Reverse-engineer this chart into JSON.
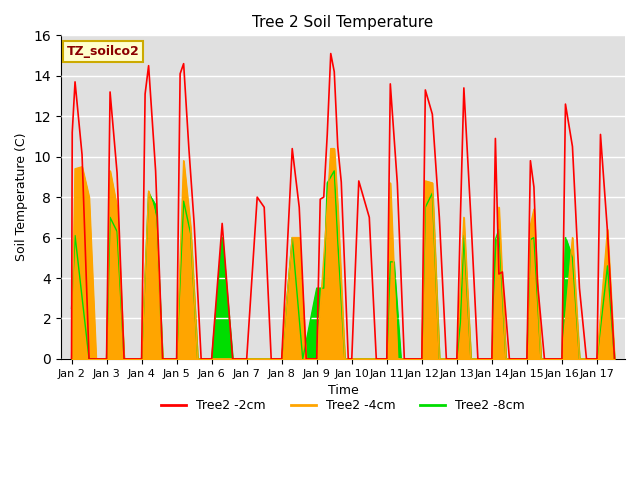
{
  "title": "Tree 2 Soil Temperature",
  "xlabel": "Time",
  "ylabel": "Soil Temperature (C)",
  "ylim": [
    0,
    16
  ],
  "yticks": [
    0,
    2,
    4,
    6,
    8,
    10,
    12,
    14,
    16
  ],
  "annotation_text": "TZ_soilco2",
  "bg_color": "#e0e0e0",
  "legend_entries": [
    "Tree2 -2cm",
    "Tree2 -4cm",
    "Tree2 -8cm"
  ],
  "line_colors": [
    "#ff0000",
    "#ffa500",
    "#00dd00"
  ],
  "x_labels": [
    "Jan 2",
    "Jan 3",
    "Jan 4",
    "Jan 5",
    "Jan 6",
    "Jan 7",
    "Jan 8",
    "Jan 9",
    "Jan 10",
    "Jan 11",
    "Jan 12",
    "Jan 13",
    "Jan 14",
    "Jan 15",
    "Jan 16",
    "Jan 17"
  ],
  "x_positions": [
    0,
    1,
    2,
    3,
    4,
    5,
    6,
    7,
    8,
    9,
    10,
    11,
    12,
    13,
    14,
    15
  ],
  "series_2cm": [
    0,
    11.2,
    13.7,
    10.1,
    0,
    0,
    13.2,
    9.2,
    0,
    0,
    13.1,
    14.5,
    9.3,
    0,
    0,
    14.1,
    14.6,
    10.4,
    6.7,
    0,
    0,
    6.7,
    0,
    0,
    8.0,
    7.5,
    0,
    0,
    10.4,
    7.5,
    0,
    0,
    7.9,
    8.0,
    11.1,
    15.1,
    14.2,
    10.5,
    8.75,
    0,
    0,
    8.8,
    7.0,
    0,
    0,
    13.6,
    8.7,
    0,
    0,
    13.3,
    12.1,
    7.0,
    0,
    0,
    6.9,
    13.4,
    7.0,
    0,
    0,
    10.9,
    4.2,
    4.3,
    0,
    0,
    9.8,
    8.5,
    3.8,
    0,
    0,
    12.6,
    10.5,
    3.5,
    0,
    0,
    11.1,
    6.3,
    0
  ],
  "series_2cm_x": [
    0.0,
    0.02,
    0.1,
    0.3,
    0.5,
    1.0,
    1.1,
    1.3,
    1.5,
    2.0,
    2.1,
    2.2,
    2.4,
    2.6,
    3.0,
    3.1,
    3.2,
    3.35,
    3.5,
    3.7,
    4.0,
    4.3,
    4.6,
    5.0,
    5.3,
    5.5,
    5.7,
    6.0,
    6.3,
    6.5,
    6.7,
    7.0,
    7.1,
    7.2,
    7.3,
    7.4,
    7.5,
    7.6,
    7.7,
    7.9,
    8.0,
    8.2,
    8.5,
    8.7,
    9.0,
    9.1,
    9.3,
    9.5,
    10.0,
    10.1,
    10.3,
    10.5,
    10.7,
    11.0,
    11.1,
    11.2,
    11.4,
    11.6,
    12.0,
    12.1,
    12.2,
    12.3,
    12.5,
    13.0,
    13.1,
    13.2,
    13.3,
    13.5,
    14.0,
    14.1,
    14.3,
    14.5,
    14.7,
    15.0,
    15.1,
    15.3,
    15.5
  ],
  "series_4cm": [
    0,
    9.4,
    9.5,
    8.0,
    0,
    0,
    9.3,
    7.5,
    0,
    0,
    8.3,
    7.0,
    0,
    0,
    9.8,
    6.5,
    0,
    0,
    0,
    0,
    6.0,
    6.0,
    0,
    0,
    7.5,
    10.4,
    10.4,
    7.5,
    0,
    0,
    0,
    8.7,
    0,
    0,
    8.8,
    8.7,
    0,
    0,
    7.0,
    0,
    0,
    7.5,
    0,
    0,
    6.6,
    7.4,
    0,
    0,
    6.0,
    0,
    0,
    6.4,
    0
  ],
  "series_4cm_x": [
    0.0,
    0.1,
    0.3,
    0.5,
    0.7,
    1.0,
    1.1,
    1.3,
    1.5,
    2.0,
    2.2,
    2.4,
    2.6,
    3.0,
    3.2,
    3.4,
    3.6,
    4.0,
    5.0,
    6.0,
    6.3,
    6.5,
    6.7,
    7.0,
    7.3,
    7.4,
    7.5,
    7.6,
    7.8,
    8.0,
    9.0,
    9.1,
    9.3,
    10.0,
    10.1,
    10.3,
    10.5,
    11.0,
    11.2,
    11.4,
    12.0,
    12.2,
    12.4,
    13.0,
    13.1,
    13.2,
    13.4,
    14.0,
    14.3,
    14.5,
    15.0,
    15.3,
    15.5
  ],
  "series_8cm": [
    2.5,
    6.1,
    0,
    0,
    7.0,
    6.3,
    0,
    0,
    8.2,
    7.6,
    0,
    0,
    7.8,
    6.2,
    0,
    0,
    6.0,
    0,
    0,
    0,
    6.0,
    0,
    3.5,
    3.5,
    8.7,
    9.0,
    9.3,
    5.8,
    0,
    0,
    0,
    4.8,
    4.8,
    0,
    0,
    7.5,
    8.2,
    0,
    0,
    1.8,
    6.1,
    0,
    0,
    5.9,
    6.4,
    0,
    0,
    5.9,
    6.0,
    0,
    0,
    6.0,
    5.0,
    0,
    0,
    4.6,
    0
  ],
  "series_8cm_x": [
    0.0,
    0.1,
    0.5,
    1.0,
    1.1,
    1.3,
    1.5,
    2.0,
    2.2,
    2.4,
    2.6,
    3.0,
    3.2,
    3.4,
    3.6,
    4.0,
    4.3,
    4.6,
    5.0,
    6.0,
    6.3,
    6.6,
    7.0,
    7.2,
    7.3,
    7.4,
    7.5,
    7.6,
    7.8,
    8.0,
    9.0,
    9.1,
    9.2,
    9.4,
    10.0,
    10.1,
    10.3,
    10.5,
    11.0,
    11.1,
    11.2,
    11.4,
    12.0,
    12.1,
    12.2,
    12.4,
    13.0,
    13.1,
    13.2,
    13.4,
    14.0,
    14.1,
    14.3,
    14.5,
    15.0,
    15.3,
    15.5
  ]
}
